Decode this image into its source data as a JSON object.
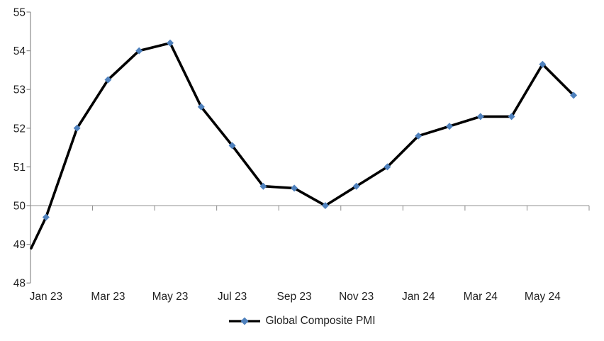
{
  "chart_data": {
    "type": "line",
    "title": "",
    "series": [
      {
        "name": "Global Composite PMI",
        "categories": [
          "Dec 22",
          "Jan 23",
          "Feb 23",
          "Mar 23",
          "Apr 23",
          "May 23",
          "Jun 23",
          "Jul 23",
          "Aug 23",
          "Sep 23",
          "Oct 23",
          "Nov 23",
          "Dec 23",
          "Jan 24",
          "Feb 24",
          "Mar 24",
          "Apr 24",
          "May 24",
          "Jun 24"
        ],
        "values": [
          48.9,
          49.7,
          52.0,
          53.25,
          54.0,
          54.2,
          52.55,
          51.55,
          50.5,
          50.45,
          50.0,
          50.5,
          51.0,
          51.8,
          52.05,
          52.3,
          52.3,
          53.65,
          52.85
        ],
        "marker": "diamond",
        "first_point_marker_hidden": true
      }
    ],
    "x_axis": {
      "visible_tick_labels": [
        "Jan 23",
        "Mar 23",
        "May 23",
        "Jul 23",
        "Sep 23",
        "Nov 23",
        "Jan 24",
        "Mar 24",
        "May 24"
      ],
      "label_interval_months": 2,
      "axis_crosses_at_y": 50
    },
    "y_axis": {
      "min": 48,
      "max": 55,
      "tick_interval": 1,
      "tick_labels": [
        "48",
        "49",
        "50",
        "51",
        "52",
        "53",
        "54",
        "55"
      ]
    },
    "legend": {
      "position": "bottom",
      "items": [
        "Global Composite PMI"
      ]
    },
    "colors": {
      "line": "#000000",
      "marker": "#4F81BD",
      "axis_gray": "#8c8c8c",
      "baseline_gray": "#a6a6a6",
      "text": "#1f1f1f"
    },
    "grid": "only horizontal baseline at 50"
  }
}
